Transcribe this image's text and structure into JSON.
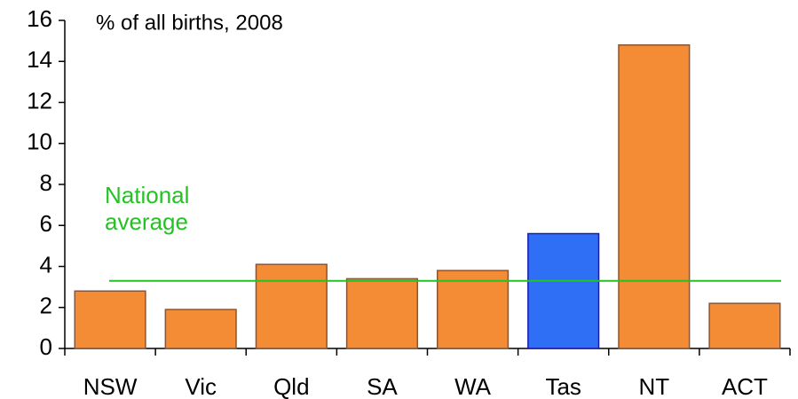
{
  "chart_data": {
    "type": "bar",
    "title": "% of all births, 2008",
    "categories": [
      "NSW",
      "Vic",
      "Qld",
      "SA",
      "WA",
      "Tas",
      "NT",
      "ACT"
    ],
    "values": [
      2.8,
      1.9,
      4.1,
      3.4,
      3.8,
      5.6,
      14.8,
      2.2
    ],
    "colors": [
      "#f48c36",
      "#f48c36",
      "#f48c36",
      "#f48c36",
      "#f48c36",
      "#2f6ff5",
      "#f48c36",
      "#f48c36"
    ],
    "ylim": [
      0,
      16
    ],
    "yticks": [
      0,
      2,
      4,
      6,
      8,
      10,
      12,
      14,
      16
    ],
    "grid": false,
    "reference_line": {
      "value": 3.3,
      "label": "National average",
      "color": "#22c322"
    }
  }
}
